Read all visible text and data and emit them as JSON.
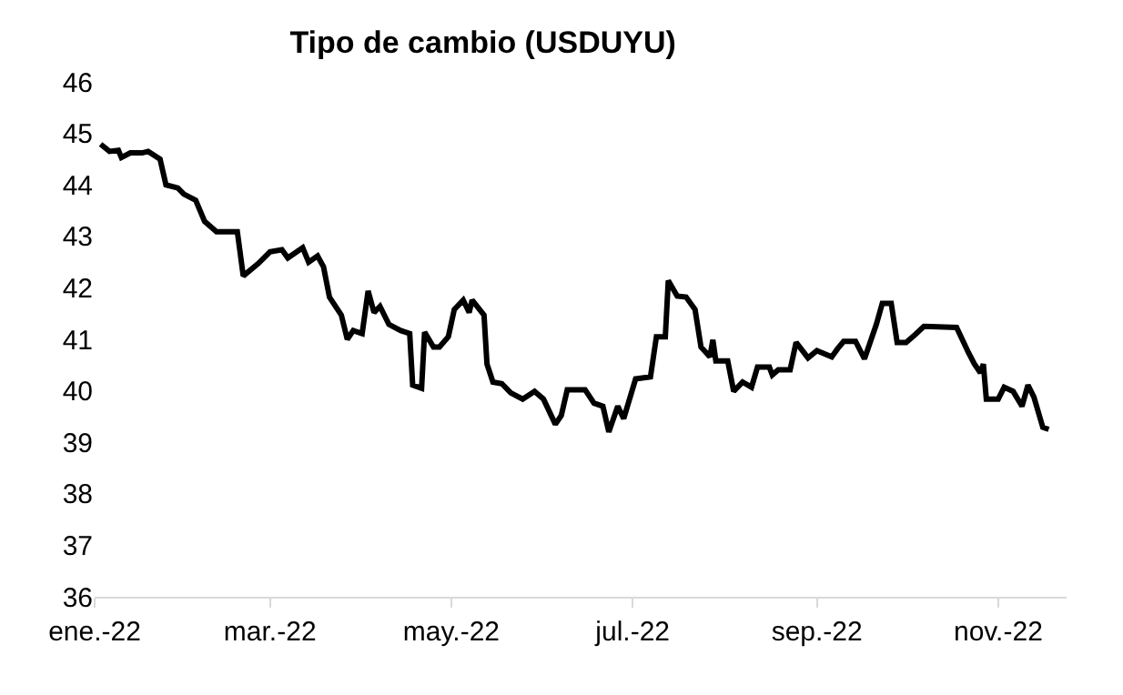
{
  "chart_data": {
    "type": "line",
    "title": "Tipo de cambio (USDUYU)",
    "x": [
      "2022-01-03",
      "2022-01-06",
      "2022-01-09",
      "2022-01-10",
      "2022-01-13",
      "2022-01-17",
      "2022-01-19",
      "2022-01-23",
      "2022-01-25",
      "2022-01-29",
      "2022-01-31",
      "2022-02-04",
      "2022-02-07",
      "2022-02-11",
      "2022-02-18",
      "2022-02-20",
      "2022-02-25",
      "2022-03-01",
      "2022-03-05",
      "2022-03-07",
      "2022-03-12",
      "2022-03-14",
      "2022-03-17",
      "2022-03-19",
      "2022-03-21",
      "2022-03-25",
      "2022-03-27",
      "2022-03-29",
      "2022-04-01",
      "2022-04-03",
      "2022-04-05",
      "2022-04-07",
      "2022-04-10",
      "2022-04-14",
      "2022-04-17",
      "2022-04-18",
      "2022-04-21",
      "2022-04-22",
      "2022-04-25",
      "2022-04-27",
      "2022-04-30",
      "2022-05-02",
      "2022-05-05",
      "2022-05-07",
      "2022-05-08",
      "2022-05-12",
      "2022-05-13",
      "2022-05-15",
      "2022-05-18",
      "2022-05-21",
      "2022-05-25",
      "2022-05-29",
      "2022-06-01",
      "2022-06-05",
      "2022-06-07",
      "2022-06-09",
      "2022-06-15",
      "2022-06-18",
      "2022-06-21",
      "2022-06-23",
      "2022-06-26",
      "2022-06-28",
      "2022-07-02",
      "2022-07-07",
      "2022-07-09",
      "2022-07-12",
      "2022-07-13",
      "2022-07-16",
      "2022-07-19",
      "2022-07-22",
      "2022-07-24",
      "2022-07-27",
      "2022-07-28",
      "2022-07-29",
      "2022-08-02",
      "2022-08-04",
      "2022-08-07",
      "2022-08-10",
      "2022-08-12",
      "2022-08-16",
      "2022-08-17",
      "2022-08-19",
      "2022-08-23",
      "2022-08-25",
      "2022-08-29",
      "2022-09-01",
      "2022-09-06",
      "2022-09-08",
      "2022-09-10",
      "2022-09-14",
      "2022-09-17",
      "2022-09-21",
      "2022-09-23",
      "2022-09-26",
      "2022-09-28",
      "2022-10-01",
      "2022-10-04",
      "2022-10-07",
      "2022-10-18",
      "2022-10-22",
      "2022-10-24",
      "2022-10-26",
      "2022-10-27",
      "2022-10-28",
      "2022-11-01",
      "2022-11-03",
      "2022-11-06",
      "2022-11-09",
      "2022-11-11",
      "2022-11-13",
      "2022-11-16",
      "2022-11-18"
    ],
    "series": [
      {
        "color": "#000000",
        "values": [
          44.79,
          44.65,
          44.67,
          44.53,
          44.62,
          44.62,
          44.65,
          44.5,
          44.0,
          43.94,
          43.82,
          43.7,
          43.29,
          43.09,
          43.09,
          42.23,
          42.47,
          42.7,
          42.74,
          42.58,
          42.78,
          42.5,
          42.62,
          42.41,
          41.82,
          41.47,
          41.0,
          41.17,
          41.11,
          41.94,
          41.52,
          41.64,
          41.29,
          41.17,
          41.11,
          40.11,
          40.05,
          41.14,
          40.85,
          40.85,
          41.05,
          41.58,
          41.76,
          41.52,
          41.76,
          41.47,
          40.52,
          40.17,
          40.14,
          39.96,
          39.84,
          39.99,
          39.84,
          39.35,
          39.52,
          40.02,
          40.02,
          39.76,
          39.7,
          39.2,
          39.7,
          39.46,
          40.23,
          40.27,
          41.05,
          41.05,
          42.14,
          41.84,
          41.82,
          41.58,
          40.85,
          40.66,
          40.99,
          40.58,
          40.58,
          39.99,
          40.17,
          40.07,
          40.46,
          40.46,
          40.31,
          40.41,
          40.41,
          40.94,
          40.64,
          40.78,
          40.66,
          40.82,
          40.96,
          40.96,
          40.62,
          41.29,
          41.7,
          41.7,
          40.94,
          40.94,
          41.09,
          41.25,
          41.23,
          40.74,
          40.52,
          40.35,
          40.52,
          39.84,
          39.84,
          40.07,
          39.99,
          39.7,
          40.11,
          39.88,
          39.29,
          39.25
        ]
      }
    ],
    "xlim": [
      "2022-01-01",
      "2022-11-24"
    ],
    "xticks": [
      {
        "value": "2022-01-01",
        "label": "ene.-22"
      },
      {
        "value": "2022-03-01",
        "label": "mar.-22"
      },
      {
        "value": "2022-05-01",
        "label": "may.-22"
      },
      {
        "value": "2022-07-01",
        "label": "jul.-22"
      },
      {
        "value": "2022-09-01",
        "label": "sep.-22"
      },
      {
        "value": "2022-11-01",
        "label": "nov.-22"
      }
    ],
    "ylim": [
      36,
      46
    ],
    "yticks": [
      36,
      37,
      38,
      39,
      40,
      41,
      42,
      43,
      44,
      45,
      46
    ],
    "grid": false,
    "marker": "none",
    "line_style": "solid"
  }
}
